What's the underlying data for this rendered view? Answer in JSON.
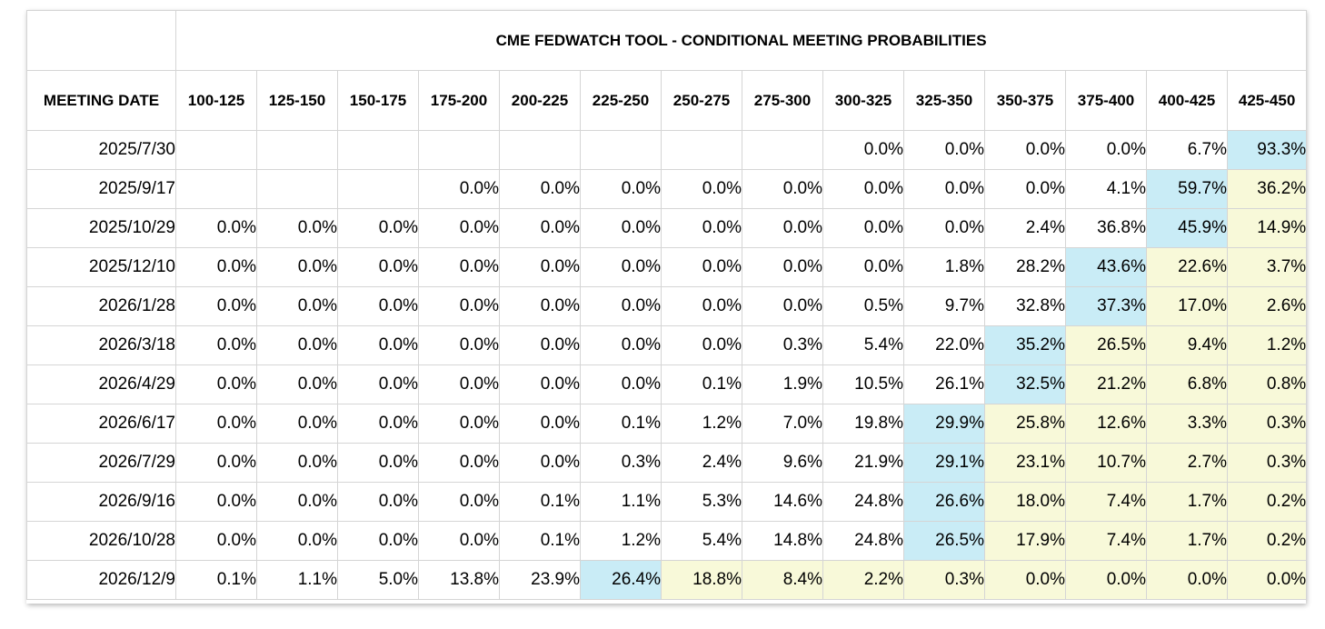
{
  "table": {
    "title": "CME FEDWATCH TOOL - CONDITIONAL MEETING PROBABILITIES",
    "date_header": "MEETING DATE",
    "columns": [
      "100-125",
      "125-150",
      "150-175",
      "175-200",
      "200-225",
      "225-250",
      "250-275",
      "275-300",
      "300-325",
      "325-350",
      "350-375",
      "375-400",
      "400-425",
      "425-450"
    ],
    "highlight_colors": {
      "max": "#c9ecf6",
      "above_max_rate": "#f8f9d9"
    },
    "rows": [
      {
        "date": "2025/7/30",
        "cells": [
          {
            "v": ""
          },
          {
            "v": ""
          },
          {
            "v": ""
          },
          {
            "v": ""
          },
          {
            "v": ""
          },
          {
            "v": ""
          },
          {
            "v": ""
          },
          {
            "v": ""
          },
          {
            "v": "0.0%"
          },
          {
            "v": "0.0%"
          },
          {
            "v": "0.0%"
          },
          {
            "v": "0.0%"
          },
          {
            "v": "6.7%"
          },
          {
            "v": "93.3%",
            "hl": "hi"
          }
        ]
      },
      {
        "date": "2025/9/17",
        "cells": [
          {
            "v": ""
          },
          {
            "v": ""
          },
          {
            "v": ""
          },
          {
            "v": "0.0%"
          },
          {
            "v": "0.0%"
          },
          {
            "v": "0.0%"
          },
          {
            "v": "0.0%"
          },
          {
            "v": "0.0%"
          },
          {
            "v": "0.0%"
          },
          {
            "v": "0.0%"
          },
          {
            "v": "0.0%"
          },
          {
            "v": "4.1%"
          },
          {
            "v": "59.7%",
            "hl": "hi"
          },
          {
            "v": "36.2%",
            "hl": "mid"
          }
        ]
      },
      {
        "date": "2025/10/29",
        "cells": [
          {
            "v": "0.0%"
          },
          {
            "v": "0.0%"
          },
          {
            "v": "0.0%"
          },
          {
            "v": "0.0%"
          },
          {
            "v": "0.0%"
          },
          {
            "v": "0.0%"
          },
          {
            "v": "0.0%"
          },
          {
            "v": "0.0%"
          },
          {
            "v": "0.0%"
          },
          {
            "v": "0.0%"
          },
          {
            "v": "2.4%"
          },
          {
            "v": "36.8%"
          },
          {
            "v": "45.9%",
            "hl": "hi"
          },
          {
            "v": "14.9%",
            "hl": "mid"
          }
        ]
      },
      {
        "date": "2025/12/10",
        "cells": [
          {
            "v": "0.0%"
          },
          {
            "v": "0.0%"
          },
          {
            "v": "0.0%"
          },
          {
            "v": "0.0%"
          },
          {
            "v": "0.0%"
          },
          {
            "v": "0.0%"
          },
          {
            "v": "0.0%"
          },
          {
            "v": "0.0%"
          },
          {
            "v": "0.0%"
          },
          {
            "v": "1.8%"
          },
          {
            "v": "28.2%"
          },
          {
            "v": "43.6%",
            "hl": "hi"
          },
          {
            "v": "22.6%",
            "hl": "mid"
          },
          {
            "v": "3.7%",
            "hl": "mid"
          }
        ]
      },
      {
        "date": "2026/1/28",
        "cells": [
          {
            "v": "0.0%"
          },
          {
            "v": "0.0%"
          },
          {
            "v": "0.0%"
          },
          {
            "v": "0.0%"
          },
          {
            "v": "0.0%"
          },
          {
            "v": "0.0%"
          },
          {
            "v": "0.0%"
          },
          {
            "v": "0.0%"
          },
          {
            "v": "0.5%"
          },
          {
            "v": "9.7%"
          },
          {
            "v": "32.8%"
          },
          {
            "v": "37.3%",
            "hl": "hi"
          },
          {
            "v": "17.0%",
            "hl": "mid"
          },
          {
            "v": "2.6%",
            "hl": "mid"
          }
        ]
      },
      {
        "date": "2026/3/18",
        "cells": [
          {
            "v": "0.0%"
          },
          {
            "v": "0.0%"
          },
          {
            "v": "0.0%"
          },
          {
            "v": "0.0%"
          },
          {
            "v": "0.0%"
          },
          {
            "v": "0.0%"
          },
          {
            "v": "0.0%"
          },
          {
            "v": "0.3%"
          },
          {
            "v": "5.4%"
          },
          {
            "v": "22.0%"
          },
          {
            "v": "35.2%",
            "hl": "hi"
          },
          {
            "v": "26.5%",
            "hl": "mid"
          },
          {
            "v": "9.4%",
            "hl": "mid"
          },
          {
            "v": "1.2%",
            "hl": "mid"
          }
        ]
      },
      {
        "date": "2026/4/29",
        "cells": [
          {
            "v": "0.0%"
          },
          {
            "v": "0.0%"
          },
          {
            "v": "0.0%"
          },
          {
            "v": "0.0%"
          },
          {
            "v": "0.0%"
          },
          {
            "v": "0.0%"
          },
          {
            "v": "0.1%"
          },
          {
            "v": "1.9%"
          },
          {
            "v": "10.5%"
          },
          {
            "v": "26.1%"
          },
          {
            "v": "32.5%",
            "hl": "hi"
          },
          {
            "v": "21.2%",
            "hl": "mid"
          },
          {
            "v": "6.8%",
            "hl": "mid"
          },
          {
            "v": "0.8%",
            "hl": "mid"
          }
        ]
      },
      {
        "date": "2026/6/17",
        "cells": [
          {
            "v": "0.0%"
          },
          {
            "v": "0.0%"
          },
          {
            "v": "0.0%"
          },
          {
            "v": "0.0%"
          },
          {
            "v": "0.0%"
          },
          {
            "v": "0.1%"
          },
          {
            "v": "1.2%"
          },
          {
            "v": "7.0%"
          },
          {
            "v": "19.8%"
          },
          {
            "v": "29.9%",
            "hl": "hi"
          },
          {
            "v": "25.8%",
            "hl": "mid"
          },
          {
            "v": "12.6%",
            "hl": "mid"
          },
          {
            "v": "3.3%",
            "hl": "mid"
          },
          {
            "v": "0.3%",
            "hl": "mid"
          }
        ]
      },
      {
        "date": "2026/7/29",
        "cells": [
          {
            "v": "0.0%"
          },
          {
            "v": "0.0%"
          },
          {
            "v": "0.0%"
          },
          {
            "v": "0.0%"
          },
          {
            "v": "0.0%"
          },
          {
            "v": "0.3%"
          },
          {
            "v": "2.4%"
          },
          {
            "v": "9.6%"
          },
          {
            "v": "21.9%"
          },
          {
            "v": "29.1%",
            "hl": "hi"
          },
          {
            "v": "23.1%",
            "hl": "mid"
          },
          {
            "v": "10.7%",
            "hl": "mid"
          },
          {
            "v": "2.7%",
            "hl": "mid"
          },
          {
            "v": "0.3%",
            "hl": "mid"
          }
        ]
      },
      {
        "date": "2026/9/16",
        "cells": [
          {
            "v": "0.0%"
          },
          {
            "v": "0.0%"
          },
          {
            "v": "0.0%"
          },
          {
            "v": "0.0%"
          },
          {
            "v": "0.1%"
          },
          {
            "v": "1.1%"
          },
          {
            "v": "5.3%"
          },
          {
            "v": "14.6%"
          },
          {
            "v": "24.8%"
          },
          {
            "v": "26.6%",
            "hl": "hi"
          },
          {
            "v": "18.0%",
            "hl": "mid"
          },
          {
            "v": "7.4%",
            "hl": "mid"
          },
          {
            "v": "1.7%",
            "hl": "mid"
          },
          {
            "v": "0.2%",
            "hl": "mid"
          }
        ]
      },
      {
        "date": "2026/10/28",
        "cells": [
          {
            "v": "0.0%"
          },
          {
            "v": "0.0%"
          },
          {
            "v": "0.0%"
          },
          {
            "v": "0.0%"
          },
          {
            "v": "0.1%"
          },
          {
            "v": "1.2%"
          },
          {
            "v": "5.4%"
          },
          {
            "v": "14.8%"
          },
          {
            "v": "24.8%"
          },
          {
            "v": "26.5%",
            "hl": "hi"
          },
          {
            "v": "17.9%",
            "hl": "mid"
          },
          {
            "v": "7.4%",
            "hl": "mid"
          },
          {
            "v": "1.7%",
            "hl": "mid"
          },
          {
            "v": "0.2%",
            "hl": "mid"
          }
        ]
      },
      {
        "date": "2026/12/9",
        "cells": [
          {
            "v": "0.1%"
          },
          {
            "v": "1.1%"
          },
          {
            "v": "5.0%"
          },
          {
            "v": "13.8%"
          },
          {
            "v": "23.9%"
          },
          {
            "v": "26.4%",
            "hl": "hi"
          },
          {
            "v": "18.8%",
            "hl": "mid"
          },
          {
            "v": "8.4%",
            "hl": "mid"
          },
          {
            "v": "2.2%",
            "hl": "mid"
          },
          {
            "v": "0.3%",
            "hl": "mid"
          },
          {
            "v": "0.0%",
            "hl": "mid"
          },
          {
            "v": "0.0%",
            "hl": "mid"
          },
          {
            "v": "0.0%",
            "hl": "mid"
          },
          {
            "v": "0.0%",
            "hl": "mid"
          }
        ]
      }
    ]
  }
}
